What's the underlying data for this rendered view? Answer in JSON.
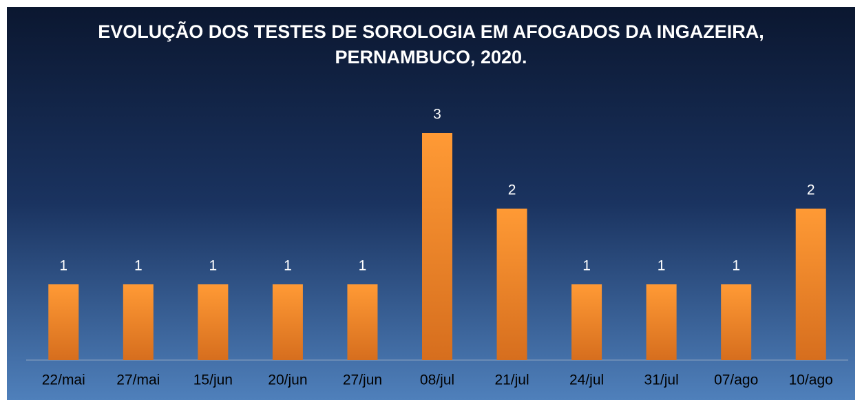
{
  "chart_data": {
    "type": "bar",
    "title": "EVOLUÇÃO DOS TESTES DE SOROLOGIA EM AFOGADOS DA INGAZEIRA, PERNAMBUCO, 2020.",
    "categories": [
      "22/mai",
      "27/mai",
      "15/jun",
      "20/jun",
      "27/jun",
      "08/jul",
      "21/jul",
      "24/jul",
      "31/jul",
      "07/ago",
      "10/ago"
    ],
    "values": [
      1,
      1,
      1,
      1,
      1,
      3,
      2,
      1,
      1,
      1,
      2
    ],
    "color": "#f7902f"
  }
}
